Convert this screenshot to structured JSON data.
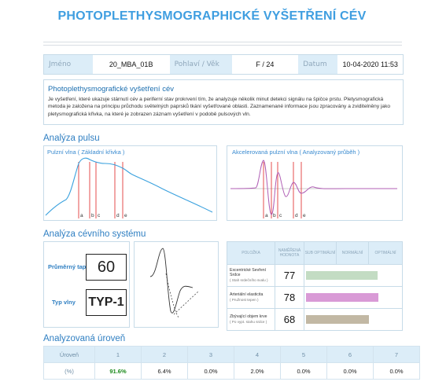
{
  "page_title": "PHOTOPLETHYSMOGRAPHICKÉ VYŠETŘENÍ CÉV",
  "patient": {
    "name_label": "Jméno",
    "name": "20_MBA_01B",
    "gender_age_label": "Pohlaví / Věk",
    "gender_age": "F / 24",
    "date_label": "Datum",
    "date": "10-04-2020 11:53"
  },
  "description": {
    "title": "Photoplethysmografické vyšetření cév",
    "text": "Je vyšetření, které ukazuje stárnutí cév a periferní stav prokrvení tím, že analyzuje několik minut detekci signálu na špičce prstu. Pletysmografická metoda je založena na principu průchodu světelných paprsků tkání vyšetřované oblasti. Zaznamenané informace jsou zpracovány a zviditelněny jako pletysmografická křivka, na které je zobrazen záznam vyšetření v podobě pulsových vln."
  },
  "pulse_section": {
    "title": "Analýza pulsu",
    "basic_wave_title": "Pulzní vlna ( Základní křivka )",
    "accel_wave_title": "Akcelerovaná pulzní vlna ( Analyzovaný průběh )",
    "basic_markers": [
      "a",
      "b",
      "c",
      "d",
      "e"
    ],
    "accel_markers": [
      "a",
      "b",
      "c",
      "d",
      "e"
    ]
  },
  "vascular_section": {
    "title": "Analýza cévního systému",
    "avg_type_label": "Průměrný tap",
    "avg_type_value": "60",
    "wave_type_label": "Typ vlny",
    "wave_type_value": "TYP-1",
    "table_headers": [
      "POLOŽKA",
      "NAMĚŘENÁ HODNOTA",
      "SUB OPTIMÁLNÍ",
      "NORMÁLNÍ",
      "OPTIMÁLNÍ"
    ],
    "rows": [
      {
        "label": "Excentrické Sevření Srdce",
        "sub": "( Stah srdečního svalu )",
        "value": "77",
        "level": 0.77,
        "color": "#c3dcc3"
      },
      {
        "label": "Arteriální elasticita",
        "sub": "( Pružnost tepen )",
        "value": "78",
        "level": 0.78,
        "color": "#d99ad6"
      },
      {
        "label": "Zbývající objem krve",
        "sub": "( Po vypt. stahu srdce )",
        "value": "68",
        "level": 0.68,
        "color": "#c2b8a4"
      }
    ]
  },
  "levels_section": {
    "title": "Analyzovaná úroveň",
    "header_label": "Úroveň",
    "row_label": "(%)",
    "levels": [
      "1",
      "2",
      "3",
      "4",
      "5",
      "6",
      "7"
    ],
    "values": [
      "91.6%",
      "6.4%",
      "0.0%",
      "2.0%",
      "0.0%",
      "0.0%",
      "0.0%"
    ]
  },
  "colors": {
    "accent": "#3f9ee0",
    "curve_blue": "#3aa1de",
    "marker_red": "#e23a3a",
    "highlight_green": "#1c8a1c"
  }
}
